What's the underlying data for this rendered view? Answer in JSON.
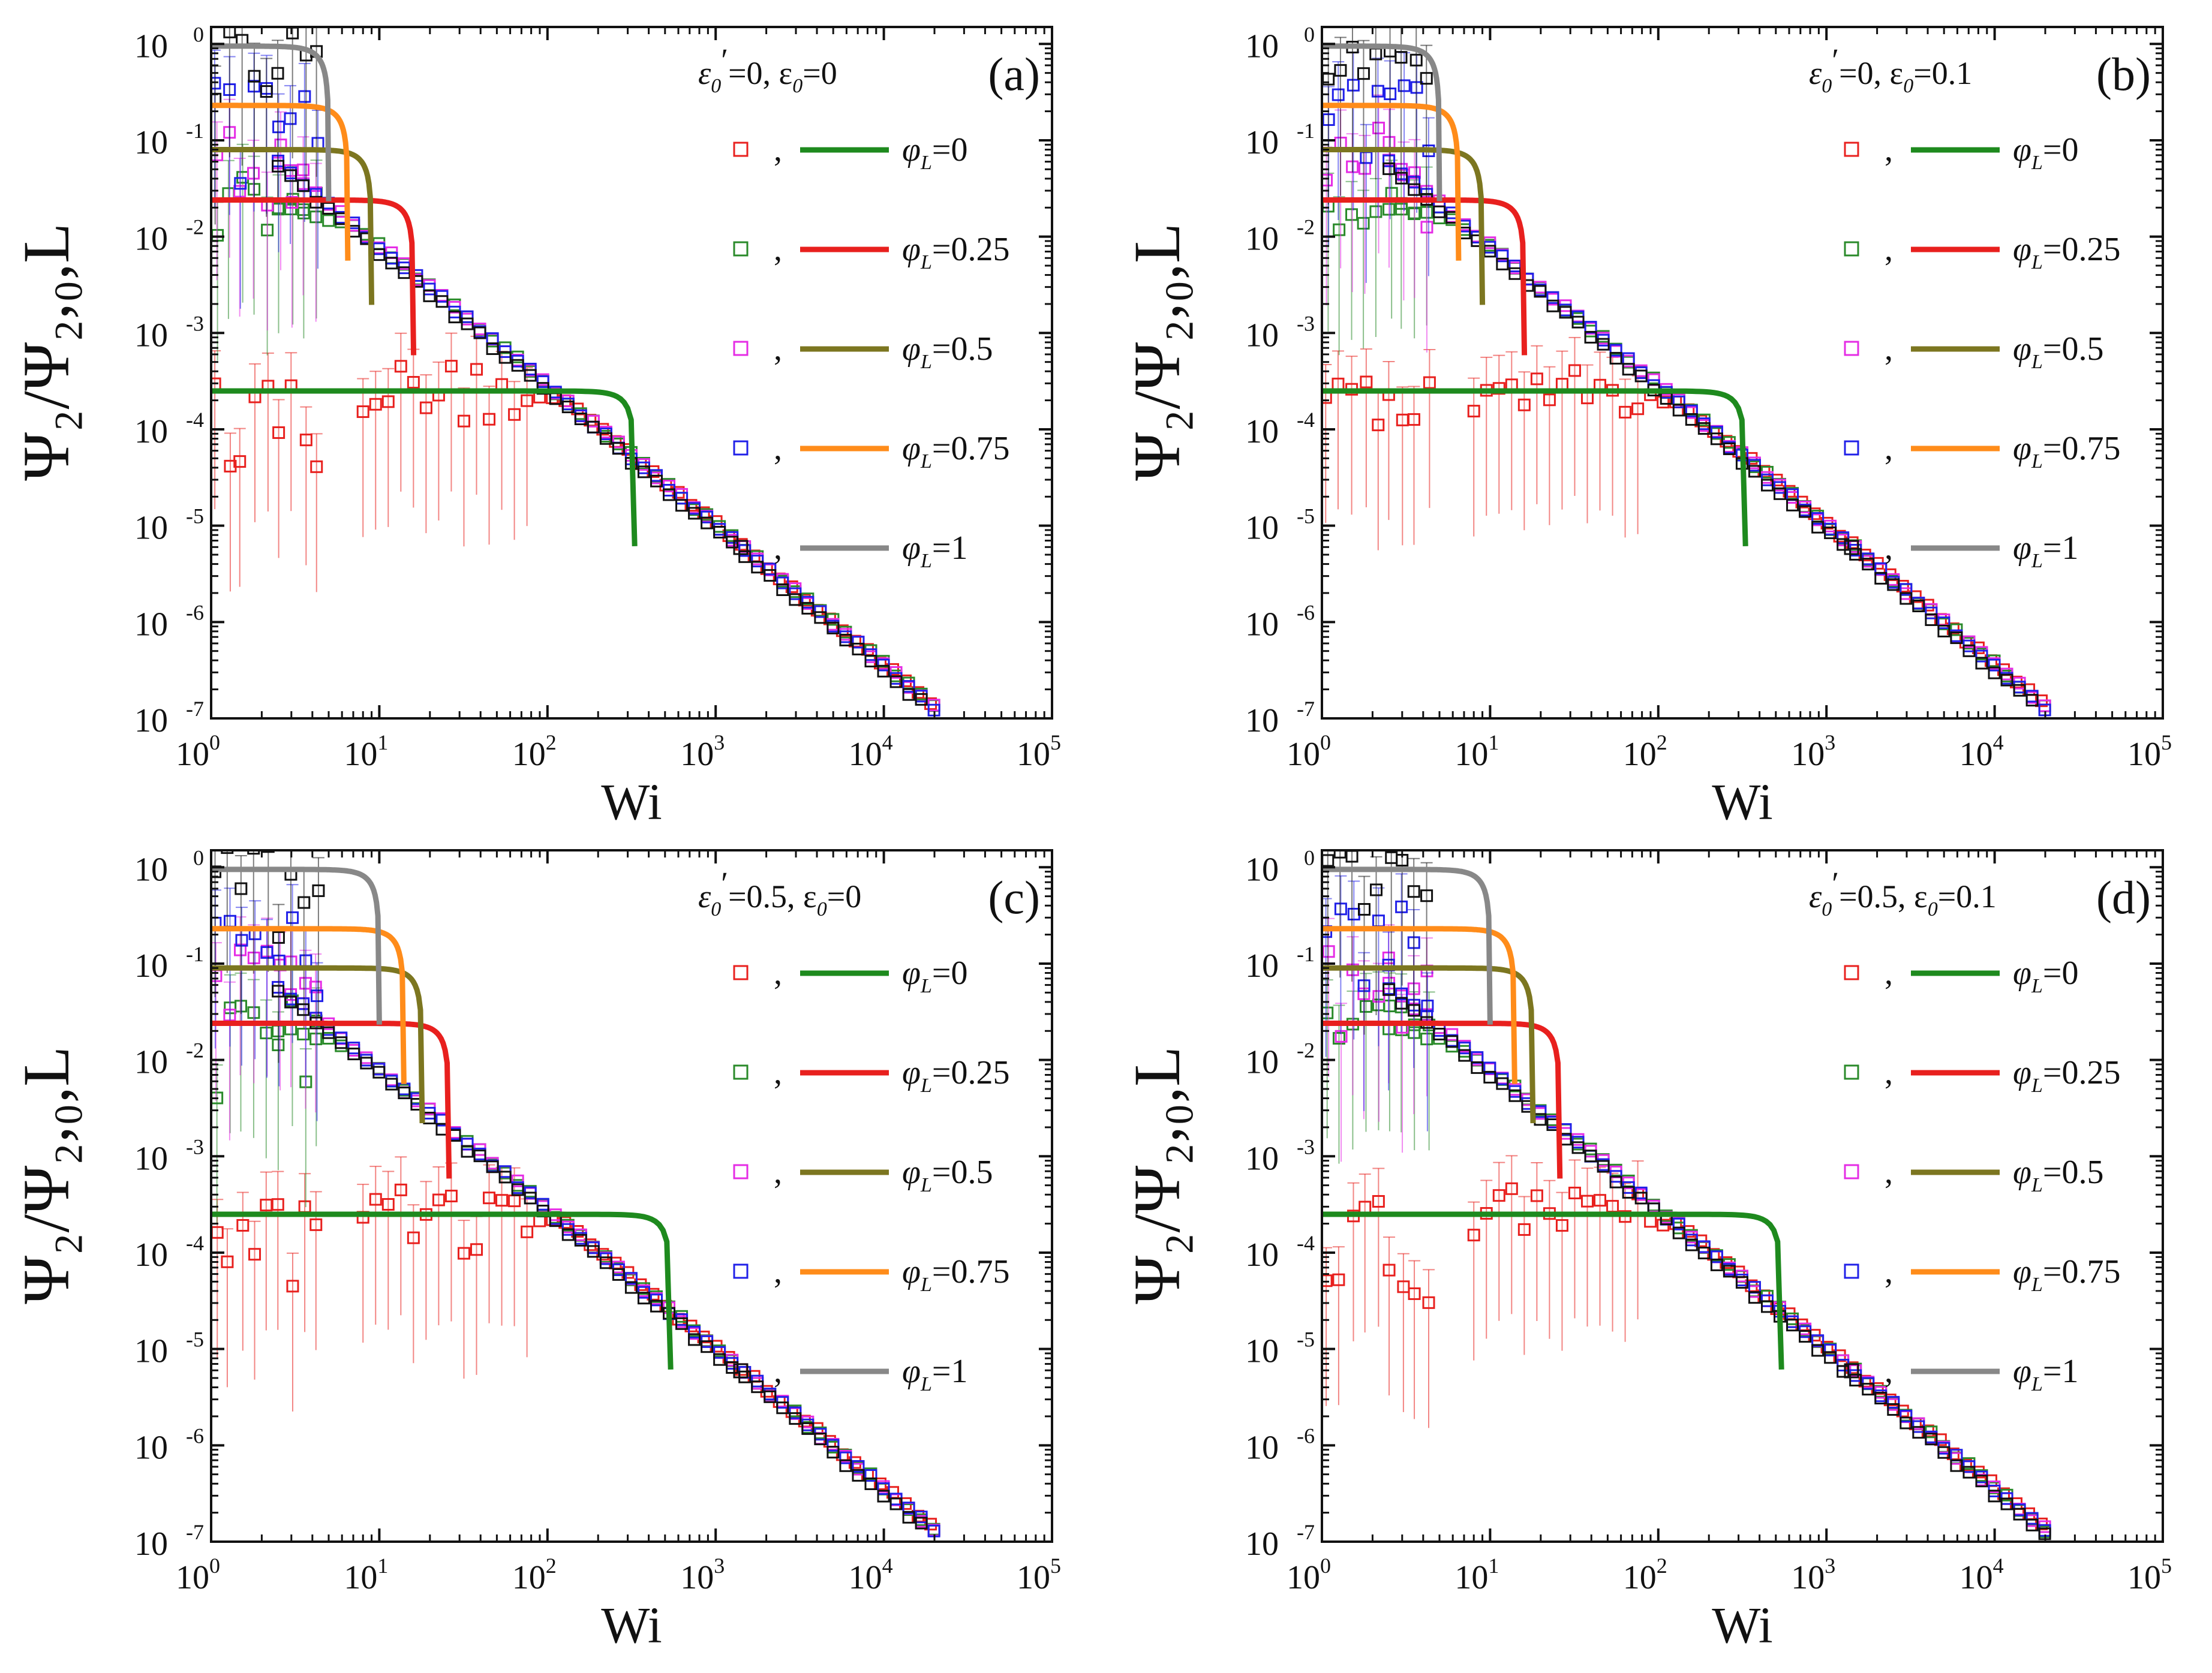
{
  "chart_data": [
    {
      "type": "scatter",
      "panel_label": "(a)",
      "condition": {
        "eps_prime": "0",
        "eps": "0"
      },
      "xlabel": "Wi",
      "ylabel": "Ψ₂/Ψ₂,₀,L",
      "xscale": "log",
      "yscale": "log",
      "xlim": [
        1,
        100000
      ],
      "ylim": [
        1e-07,
        1.5
      ],
      "xticks": [
        "10^0",
        "10^1",
        "10^2",
        "10^3",
        "10^4",
        "10^5"
      ],
      "yticks": [
        "10^0",
        "10^-1",
        "10^-2",
        "10^-3",
        "10^-4",
        "10^-5",
        "10^-6",
        "10^-7"
      ],
      "legend": {
        "position": "top-right",
        "symbol": "φ",
        "subscript": "L",
        "entries": [
          "=0",
          "=0.25",
          "=0.5",
          "=0.75",
          "=1"
        ]
      },
      "series": [
        {
          "name": "φL=0",
          "marker_color": "#e8201e",
          "line_color": "#1e8a1e",
          "y0": 0.00025,
          "wi_end": 330,
          "sim_scale": 1.0
        },
        {
          "name": "φL=0.25",
          "marker_color": "#2a8a2a",
          "line_color": "#e8201e",
          "y0": 0.024,
          "wi_end": 16,
          "sim_scale": 1.35
        },
        {
          "name": "φL=0.5",
          "marker_color": "#e52ce5",
          "line_color": "#7c7620",
          "y0": 0.08,
          "wi_end": 9,
          "sim_scale": 1.7
        },
        {
          "name": "φL=0.75",
          "marker_color": "#2020e8",
          "line_color": "#ff8c1a",
          "y0": 0.23,
          "wi_end": 6.5,
          "sim_scale": 2.0
        },
        {
          "name": "φL=1",
          "marker_color": "#111111",
          "line_color": "#888888",
          "y0": 0.95,
          "wi_end": 5,
          "sim_scale": 2.4
        }
      ]
    },
    {
      "type": "scatter",
      "panel_label": "(b)",
      "condition": {
        "eps_prime": "0",
        "eps": "0.1"
      },
      "xlabel": "Wi",
      "ylabel": "Ψ₂/Ψ₂,₀,L",
      "xscale": "log",
      "yscale": "log",
      "xlim": [
        1,
        100000
      ],
      "ylim": [
        1e-07,
        1.5
      ],
      "xticks": [
        "10^0",
        "10^1",
        "10^2",
        "10^3",
        "10^4",
        "10^5"
      ],
      "yticks": [
        "10^0",
        "10^-1",
        "10^-2",
        "10^-3",
        "10^-4",
        "10^-5",
        "10^-6",
        "10^-7"
      ],
      "legend": {
        "position": "top-right",
        "symbol": "φ",
        "subscript": "L",
        "entries": [
          "=0",
          "=0.25",
          "=0.5",
          "=0.75",
          "=1"
        ]
      },
      "series": [
        {
          "name": "φL=0",
          "marker_color": "#e8201e",
          "line_color": "#1e8a1e",
          "y0": 0.00025,
          "wi_end": 330,
          "sim_scale": 1.0
        },
        {
          "name": "φL=0.25",
          "marker_color": "#2a8a2a",
          "line_color": "#e8201e",
          "y0": 0.024,
          "wi_end": 16,
          "sim_scale": 1.35
        },
        {
          "name": "φL=0.5",
          "marker_color": "#e52ce5",
          "line_color": "#7c7620",
          "y0": 0.08,
          "wi_end": 9,
          "sim_scale": 1.7
        },
        {
          "name": "φL=0.75",
          "marker_color": "#2020e8",
          "line_color": "#ff8c1a",
          "y0": 0.23,
          "wi_end": 6.5,
          "sim_scale": 2.0
        },
        {
          "name": "φL=1",
          "marker_color": "#111111",
          "line_color": "#888888",
          "y0": 0.95,
          "wi_end": 5,
          "sim_scale": 2.4
        }
      ]
    },
    {
      "type": "scatter",
      "panel_label": "(c)",
      "condition": {
        "eps_prime": "0.5",
        "eps": "0"
      },
      "xlabel": "Wi",
      "ylabel": "Ψ₂/Ψ₂,₀,L",
      "xscale": "log",
      "yscale": "log",
      "xlim": [
        1,
        100000
      ],
      "ylim": [
        1e-07,
        1.5
      ],
      "xticks": [
        "10^0",
        "10^1",
        "10^2",
        "10^3",
        "10^4",
        "10^5"
      ],
      "yticks": [
        "10^0",
        "10^-1",
        "10^-2",
        "10^-3",
        "10^-4",
        "10^-5",
        "10^-6",
        "10^-7"
      ],
      "legend": {
        "position": "top-right",
        "symbol": "φ",
        "subscript": "L",
        "entries": [
          "=0",
          "=0.25",
          "=0.5",
          "=0.75",
          "=1"
        ]
      },
      "series": [
        {
          "name": "φL=0",
          "marker_color": "#e8201e",
          "line_color": "#1e8a1e",
          "y0": 0.00025,
          "wi_end": 540,
          "sim_scale": 1.0
        },
        {
          "name": "φL=0.25",
          "marker_color": "#2a8a2a",
          "line_color": "#e8201e",
          "y0": 0.024,
          "wi_end": 26,
          "sim_scale": 1.35
        },
        {
          "name": "φL=0.5",
          "marker_color": "#e52ce5",
          "line_color": "#7c7620",
          "y0": 0.09,
          "wi_end": 18,
          "sim_scale": 1.7
        },
        {
          "name": "φL=0.75",
          "marker_color": "#2020e8",
          "line_color": "#ff8c1a",
          "y0": 0.23,
          "wi_end": 14,
          "sim_scale": 2.0
        },
        {
          "name": "φL=1",
          "marker_color": "#111111",
          "line_color": "#888888",
          "y0": 0.95,
          "wi_end": 10,
          "sim_scale": 2.4
        }
      ]
    },
    {
      "type": "scatter",
      "panel_label": "(d)",
      "condition": {
        "eps_prime": "0.5",
        "eps": "0.1"
      },
      "xlabel": "Wi",
      "ylabel": "Ψ₂/Ψ₂,₀,L",
      "xscale": "log",
      "yscale": "log",
      "xlim": [
        1,
        100000
      ],
      "ylim": [
        1e-07,
        1.5
      ],
      "xticks": [
        "10^0",
        "10^1",
        "10^2",
        "10^3",
        "10^4",
        "10^5"
      ],
      "yticks": [
        "10^0",
        "10^-1",
        "10^-2",
        "10^-3",
        "10^-4",
        "10^-5",
        "10^-6",
        "10^-7"
      ],
      "legend": {
        "position": "top-right",
        "symbol": "φ",
        "subscript": "L",
        "entries": [
          "=0",
          "=0.25",
          "=0.5",
          "=0.75",
          "=1"
        ]
      },
      "series": [
        {
          "name": "φL=0",
          "marker_color": "#e8201e",
          "line_color": "#1e8a1e",
          "y0": 0.00025,
          "wi_end": 540,
          "sim_scale": 1.0
        },
        {
          "name": "φL=0.25",
          "marker_color": "#2a8a2a",
          "line_color": "#e8201e",
          "y0": 0.024,
          "wi_end": 26,
          "sim_scale": 1.35
        },
        {
          "name": "φL=0.5",
          "marker_color": "#e52ce5",
          "line_color": "#7c7620",
          "y0": 0.09,
          "wi_end": 18,
          "sim_scale": 1.7
        },
        {
          "name": "φL=0.75",
          "marker_color": "#2020e8",
          "line_color": "#ff8c1a",
          "y0": 0.23,
          "wi_end": 14,
          "sim_scale": 2.0
        },
        {
          "name": "φL=1",
          "marker_color": "#111111",
          "line_color": "#888888",
          "y0": 0.95,
          "wi_end": 10,
          "sim_scale": 2.4
        }
      ]
    }
  ]
}
